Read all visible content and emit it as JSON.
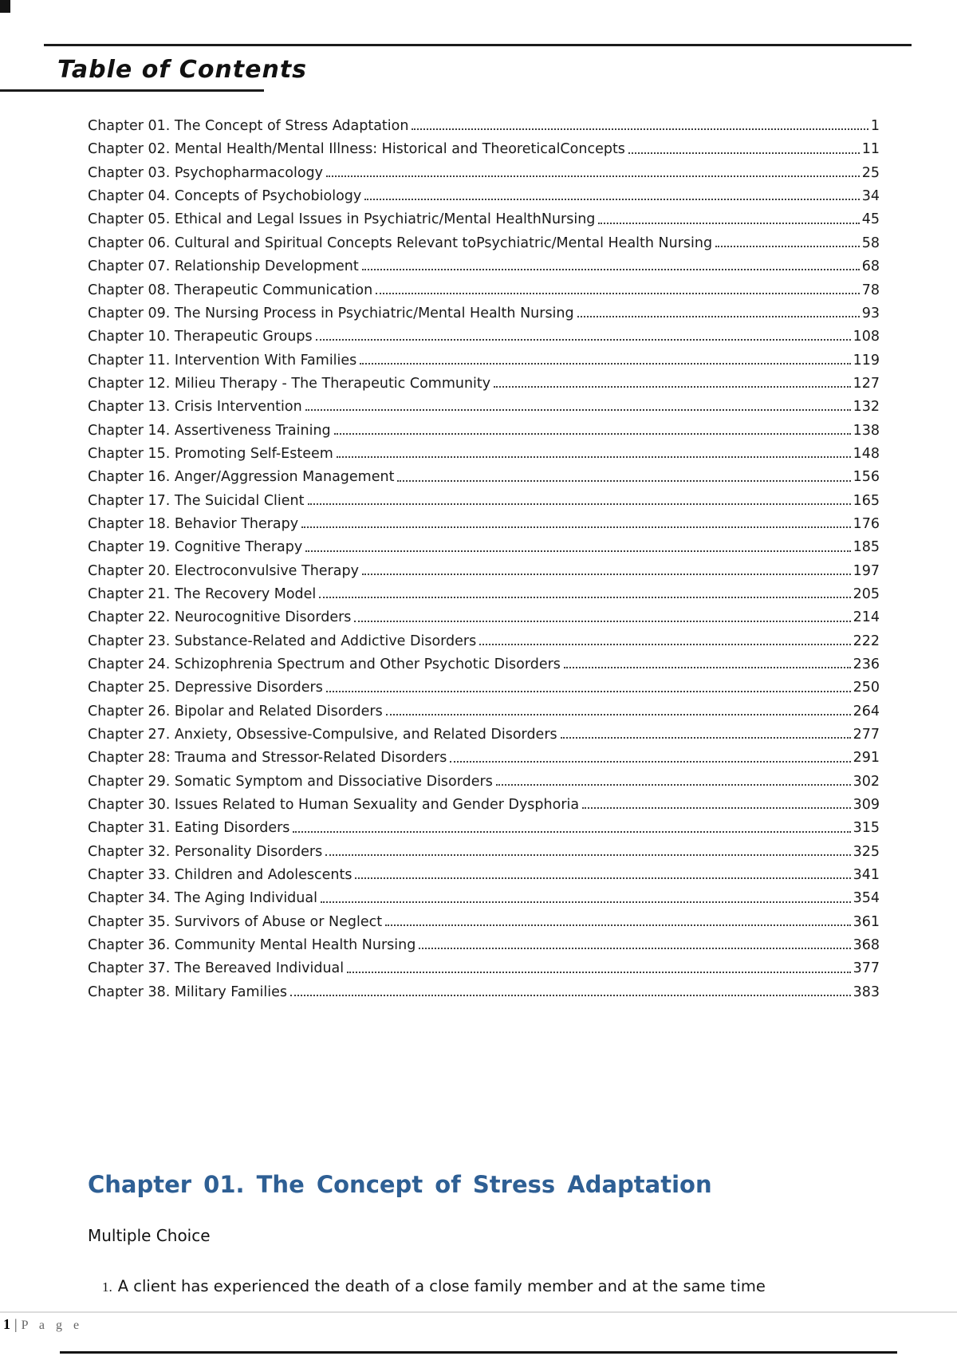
{
  "toc": {
    "title": "Table of Contents",
    "entries": [
      {
        "label": "Chapter 01. The Concept of Stress Adaptation",
        "page": "1"
      },
      {
        "label": "Chapter 02. Mental Health/Mental Illness: Historical and TheoreticalConcepts",
        "page": "11"
      },
      {
        "label": "Chapter 03. Psychopharmacology",
        "page": "25"
      },
      {
        "label": "Chapter 04. Concepts of Psychobiology",
        "page": "34"
      },
      {
        "label": "Chapter 05. Ethical and Legal Issues in Psychiatric/Mental HealthNursing",
        "page": "45"
      },
      {
        "label": "Chapter 06. Cultural and Spiritual Concepts Relevant toPsychiatric/Mental Health Nursing",
        "page": "58"
      },
      {
        "label": "Chapter 07. Relationship Development",
        "page": "68"
      },
      {
        "label": "Chapter 08. Therapeutic Communication",
        "page": "78"
      },
      {
        "label": "Chapter 09. The Nursing Process in Psychiatric/Mental Health Nursing",
        "page": "93"
      },
      {
        "label": "Chapter 10. Therapeutic Groups",
        "page": "108"
      },
      {
        "label": "Chapter 11. Intervention With Families",
        "page": "119"
      },
      {
        "label": "Chapter 12. Milieu Therapy - The Therapeutic Community",
        "page": "127"
      },
      {
        "label": "Chapter 13. Crisis Intervention",
        "page": "132"
      },
      {
        "label": "Chapter 14. Assertiveness Training",
        "page": "138"
      },
      {
        "label": "Chapter 15. Promoting Self-Esteem",
        "page": "148"
      },
      {
        "label": "Chapter 16. Anger/Aggression Management",
        "page": "156"
      },
      {
        "label": "Chapter 17. The Suicidal Client",
        "page": "165"
      },
      {
        "label": "Chapter 18. Behavior Therapy",
        "page": "176"
      },
      {
        "label": "Chapter 19. Cognitive Therapy",
        "page": "185"
      },
      {
        "label": "Chapter 20. Electroconvulsive Therapy",
        "page": "197"
      },
      {
        "label": "Chapter 21. The Recovery Model",
        "page": "205"
      },
      {
        "label": "Chapter 22. Neurocognitive Disorders",
        "page": "214"
      },
      {
        "label": "Chapter 23. Substance-Related and Addictive Disorders",
        "page": "222"
      },
      {
        "label": "Chapter 24. Schizophrenia Spectrum and Other Psychotic Disorders",
        "page": "236"
      },
      {
        "label": "Chapter 25. Depressive Disorders",
        "page": "250"
      },
      {
        "label": "Chapter 26. Bipolar and Related Disorders",
        "page": "264"
      },
      {
        "label": "Chapter 27. Anxiety, Obsessive-Compulsive, and Related Disorders",
        "page": "277"
      },
      {
        "label": "Chapter 28: Trauma and Stressor-Related Disorders",
        "page": "291"
      },
      {
        "label": "Chapter 29. Somatic Symptom and Dissociative Disorders",
        "page": "302"
      },
      {
        "label": "Chapter 30. Issues Related to Human Sexuality and Gender Dysphoria",
        "page": "309"
      },
      {
        "label": "Chapter 31. Eating Disorders",
        "page": "315"
      },
      {
        "label": "Chapter 32. Personality Disorders",
        "page": "325"
      },
      {
        "label": "Chapter 33. Children and Adolescents",
        "page": "341"
      },
      {
        "label": "Chapter 34. The Aging Individual",
        "page": "354"
      },
      {
        "label": "Chapter 35. Survivors of Abuse or Neglect",
        "page": "361"
      },
      {
        "label": "Chapter 36. Community Mental Health Nursing",
        "page": "368"
      },
      {
        "label": "Chapter 37. The Bereaved Individual",
        "page": "377"
      },
      {
        "label": "Chapter 38. Military Families",
        "page": "383"
      }
    ]
  },
  "section": {
    "heading": "Chapter 01. The Concept of Stress Adaptation",
    "heading_color": "#2e5f94",
    "subheading": "Multiple Choice",
    "question_number": "1.",
    "question_text": "A client has experienced the death of a close family member and at the same time"
  },
  "footer": {
    "page_number": "1",
    "separator": "|",
    "page_label": "P a g e"
  }
}
